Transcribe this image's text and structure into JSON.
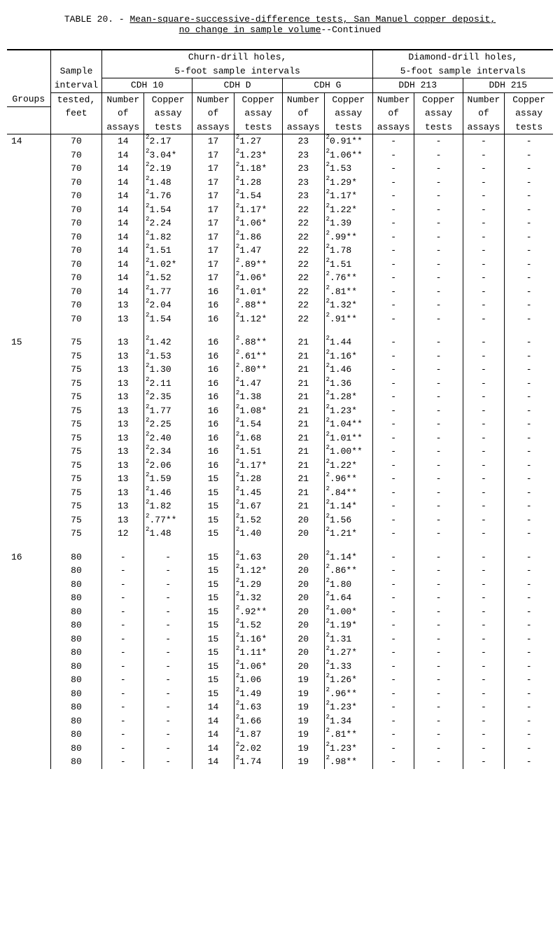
{
  "title": {
    "prefix": "TABLE 20. - ",
    "line1_ul": "Mean-square-successive-difference tests, San Manuel copper deposit,",
    "line2_ul": "no change in sample volume",
    "suffix": "--Continued"
  },
  "headers": {
    "groups": "Groups",
    "sample1": "Sample",
    "sample2": "interval",
    "sample3": "tested,",
    "sample4": "feet",
    "churn": "Churn-drill holes,",
    "churn2": "5-foot sample intervals",
    "diamond": "Diamond-drill holes,",
    "diamond2": "5-foot sample intervals",
    "cdh10": "CDH 10",
    "cdhd": "CDH D",
    "cdhg": "CDH G",
    "ddh213": "DDH 213",
    "ddh215": "DDH 215",
    "ncol1": "Number",
    "ncol2": "of",
    "ncol3": "assays",
    "acol1": "Copper",
    "acol2": "assay",
    "acol3": "tests"
  },
  "groups": [
    {
      "id": "14",
      "rows": [
        {
          "s": "70",
          "n10": "14",
          "a10": "2.17",
          "s10": "2",
          "m10": "",
          "nd": "17",
          "ad": "1.27",
          "sd": "2",
          "md": "",
          "ng": "23",
          "ag": "0.91",
          "sg": "2",
          "mg": "**"
        },
        {
          "s": "70",
          "n10": "14",
          "a10": "3.04",
          "s10": "2",
          "m10": "*",
          "nd": "17",
          "ad": "1.23",
          "sd": "2",
          "md": "*",
          "ng": "23",
          "ag": "1.06",
          "sg": "2",
          "mg": "**"
        },
        {
          "s": "70",
          "n10": "14",
          "a10": "2.19",
          "s10": "2",
          "m10": "",
          "nd": "17",
          "ad": "1.18",
          "sd": "2",
          "md": "*",
          "ng": "23",
          "ag": "1.53",
          "sg": "2",
          "mg": ""
        },
        {
          "s": "70",
          "n10": "14",
          "a10": "1.48",
          "s10": "2",
          "m10": "",
          "nd": "17",
          "ad": "1.28",
          "sd": "2",
          "md": "",
          "ng": "23",
          "ag": "1.29",
          "sg": "2",
          "mg": "*"
        },
        {
          "s": "70",
          "n10": "14",
          "a10": "1.76",
          "s10": "2",
          "m10": "",
          "nd": "17",
          "ad": "1.54",
          "sd": "2",
          "md": "",
          "ng": "23",
          "ag": "1.17",
          "sg": "2",
          "mg": "*"
        },
        {
          "s": "70",
          "n10": "14",
          "a10": "1.54",
          "s10": "2",
          "m10": "",
          "nd": "17",
          "ad": "1.17",
          "sd": "2",
          "md": "*",
          "ng": "22",
          "ag": "1.22",
          "sg": "2",
          "mg": "*"
        },
        {
          "s": "70",
          "n10": "14",
          "a10": "2.24",
          "s10": "2",
          "m10": "",
          "nd": "17",
          "ad": "1.06",
          "sd": "2",
          "md": "*",
          "ng": "22",
          "ag": "1.39",
          "sg": "2",
          "mg": ""
        },
        {
          "s": "70",
          "n10": "14",
          "a10": "1.82",
          "s10": "2",
          "m10": "",
          "nd": "17",
          "ad": "1.86",
          "sd": "2",
          "md": "",
          "ng": "22",
          "ag": ".99",
          "sg": "2",
          "mg": "**"
        },
        {
          "s": "70",
          "n10": "14",
          "a10": "1.51",
          "s10": "2",
          "m10": "",
          "nd": "17",
          "ad": "1.47",
          "sd": "2",
          "md": "",
          "ng": "22",
          "ag": "1.78",
          "sg": "2",
          "mg": ""
        },
        {
          "s": "70",
          "n10": "14",
          "a10": "1.02",
          "s10": "2",
          "m10": "*",
          "nd": "17",
          "ad": ".89",
          "sd": "2",
          "md": "**",
          "ng": "22",
          "ag": "1.51",
          "sg": "2",
          "mg": ""
        },
        {
          "s": "70",
          "n10": "14",
          "a10": "1.52",
          "s10": "2",
          "m10": "",
          "nd": "17",
          "ad": "1.06",
          "sd": "2",
          "md": "*",
          "ng": "22",
          "ag": ".76",
          "sg": "2",
          "mg": "**"
        },
        {
          "s": "70",
          "n10": "14",
          "a10": "1.77",
          "s10": "2",
          "m10": "",
          "nd": "16",
          "ad": "1.01",
          "sd": "2",
          "md": "*",
          "ng": "22",
          "ag": ".81",
          "sg": "2",
          "mg": "**"
        },
        {
          "s": "70",
          "n10": "13",
          "a10": "2.04",
          "s10": "2",
          "m10": "",
          "nd": "16",
          "ad": ".88",
          "sd": "2",
          "md": "**",
          "ng": "22",
          "ag": "1.32",
          "sg": "2",
          "mg": "*"
        },
        {
          "s": "70",
          "n10": "13",
          "a10": "1.54",
          "s10": "2",
          "m10": "",
          "nd": "16",
          "ad": "1.12",
          "sd": "2",
          "md": "*",
          "ng": "22",
          "ag": ".91",
          "sg": "2",
          "mg": "**"
        }
      ]
    },
    {
      "id": "15",
      "rows": [
        {
          "s": "75",
          "n10": "13",
          "a10": "1.42",
          "s10": "2",
          "m10": "",
          "nd": "16",
          "ad": ".88",
          "sd": "2",
          "md": "**",
          "ng": "21",
          "ag": "1.44",
          "sg": "2",
          "mg": ""
        },
        {
          "s": "75",
          "n10": "13",
          "a10": "1.53",
          "s10": "2",
          "m10": "",
          "nd": "16",
          "ad": ".61",
          "sd": "2",
          "md": "**",
          "ng": "21",
          "ag": "1.16",
          "sg": "2",
          "mg": "*"
        },
        {
          "s": "75",
          "n10": "13",
          "a10": "1.30",
          "s10": "2",
          "m10": "",
          "nd": "16",
          "ad": ".80",
          "sd": "2",
          "md": "**",
          "ng": "21",
          "ag": "1.46",
          "sg": "2",
          "mg": ""
        },
        {
          "s": "75",
          "n10": "13",
          "a10": "2.11",
          "s10": "2",
          "m10": "",
          "nd": "16",
          "ad": "1.47",
          "sd": "2",
          "md": "",
          "ng": "21",
          "ag": "1.36",
          "sg": "2",
          "mg": ""
        },
        {
          "s": "75",
          "n10": "13",
          "a10": "2.35",
          "s10": "2",
          "m10": "",
          "nd": "16",
          "ad": "1.38",
          "sd": "2",
          "md": "",
          "ng": "21",
          "ag": "1.28",
          "sg": "2",
          "mg": "*"
        },
        {
          "s": "75",
          "n10": "13",
          "a10": "1.77",
          "s10": "2",
          "m10": "",
          "nd": "16",
          "ad": "1.08",
          "sd": "2",
          "md": "*",
          "ng": "21",
          "ag": "1.23",
          "sg": "2",
          "mg": "*"
        },
        {
          "s": "75",
          "n10": "13",
          "a10": "2.25",
          "s10": "2",
          "m10": "",
          "nd": "16",
          "ad": "1.54",
          "sd": "2",
          "md": "",
          "ng": "21",
          "ag": "1.04",
          "sg": "2",
          "mg": "**"
        },
        {
          "s": "75",
          "n10": "13",
          "a10": "2.40",
          "s10": "2",
          "m10": "",
          "nd": "16",
          "ad": "1.68",
          "sd": "2",
          "md": "",
          "ng": "21",
          "ag": "1.01",
          "sg": "2",
          "mg": "**"
        },
        {
          "s": "75",
          "n10": "13",
          "a10": "2.34",
          "s10": "2",
          "m10": "",
          "nd": "16",
          "ad": "1.51",
          "sd": "2",
          "md": "",
          "ng": "21",
          "ag": "1.00",
          "sg": "2",
          "mg": "**"
        },
        {
          "s": "75",
          "n10": "13",
          "a10": "2.06",
          "s10": "2",
          "m10": "",
          "nd": "16",
          "ad": "1.17",
          "sd": "2",
          "md": "*",
          "ng": "21",
          "ag": "1.22",
          "sg": "2",
          "mg": "*"
        },
        {
          "s": "75",
          "n10": "13",
          "a10": "1.59",
          "s10": "2",
          "m10": "",
          "nd": "15",
          "ad": "1.28",
          "sd": "2",
          "md": "",
          "ng": "21",
          "ag": ".96",
          "sg": "2",
          "mg": "**"
        },
        {
          "s": "75",
          "n10": "13",
          "a10": "1.46",
          "s10": "2",
          "m10": "",
          "nd": "15",
          "ad": "1.45",
          "sd": "2",
          "md": "",
          "ng": "21",
          "ag": ".84",
          "sg": "2",
          "mg": "**"
        },
        {
          "s": "75",
          "n10": "13",
          "a10": "1.82",
          "s10": "2",
          "m10": "",
          "nd": "15",
          "ad": "1.67",
          "sd": "2",
          "md": "",
          "ng": "21",
          "ag": "1.14",
          "sg": "2",
          "mg": "*"
        },
        {
          "s": "75",
          "n10": "13",
          "a10": ".77",
          "s10": "2",
          "m10": "**",
          "nd": "15",
          "ad": "1.52",
          "sd": "2",
          "md": "",
          "ng": "20",
          "ag": "1.56",
          "sg": "2",
          "mg": ""
        },
        {
          "s": "75",
          "n10": "12",
          "a10": "1.48",
          "s10": "2",
          "m10": "",
          "nd": "15",
          "ad": "1.40",
          "sd": "2",
          "md": "",
          "ng": "20",
          "ag": "1.21",
          "sg": "2",
          "mg": "*"
        }
      ]
    },
    {
      "id": "16",
      "rows": [
        {
          "s": "80",
          "n10": "-",
          "a10": "-",
          "s10": "",
          "m10": "",
          "nd": "15",
          "ad": "1.63",
          "sd": "2",
          "md": "",
          "ng": "20",
          "ag": "1.14",
          "sg": "2",
          "mg": "*"
        },
        {
          "s": "80",
          "n10": "-",
          "a10": "-",
          "s10": "",
          "m10": "",
          "nd": "15",
          "ad": "1.12",
          "sd": "2",
          "md": "*",
          "ng": "20",
          "ag": ".86",
          "sg": "2",
          "mg": "**"
        },
        {
          "s": "80",
          "n10": "-",
          "a10": "-",
          "s10": "",
          "m10": "",
          "nd": "15",
          "ad": "1.29",
          "sd": "2",
          "md": "",
          "ng": "20",
          "ag": "1.80",
          "sg": "2",
          "mg": ""
        },
        {
          "s": "80",
          "n10": "-",
          "a10": "-",
          "s10": "",
          "m10": "",
          "nd": "15",
          "ad": "1.32",
          "sd": "2",
          "md": "",
          "ng": "20",
          "ag": "1.64",
          "sg": "2",
          "mg": ""
        },
        {
          "s": "80",
          "n10": "-",
          "a10": "-",
          "s10": "",
          "m10": "",
          "nd": "15",
          "ad": ".92",
          "sd": "2",
          "md": "**",
          "ng": "20",
          "ag": "1.00",
          "sg": "2",
          "mg": "*"
        },
        {
          "s": "80",
          "n10": "-",
          "a10": "-",
          "s10": "",
          "m10": "",
          "nd": "15",
          "ad": "1.52",
          "sd": "2",
          "md": "",
          "ng": "20",
          "ag": "1.19",
          "sg": "2",
          "mg": "*"
        },
        {
          "s": "80",
          "n10": "-",
          "a10": "-",
          "s10": "",
          "m10": "",
          "nd": "15",
          "ad": "1.16",
          "sd": "2",
          "md": "*",
          "ng": "20",
          "ag": "1.31",
          "sg": "2",
          "mg": ""
        },
        {
          "s": "80",
          "n10": "-",
          "a10": "-",
          "s10": "",
          "m10": "",
          "nd": "15",
          "ad": "1.11",
          "sd": "2",
          "md": "*",
          "ng": "20",
          "ag": "1.27",
          "sg": "2",
          "mg": "*"
        },
        {
          "s": "80",
          "n10": "-",
          "a10": "-",
          "s10": "",
          "m10": "",
          "nd": "15",
          "ad": "1.06",
          "sd": "2",
          "md": "*",
          "ng": "20",
          "ag": "1.33",
          "sg": "2",
          "mg": ""
        },
        {
          "s": "80",
          "n10": "-",
          "a10": "-",
          "s10": "",
          "m10": "",
          "nd": "15",
          "ad": "1.06",
          "sd": "2",
          "md": "",
          "ng": "19",
          "ag": "1.26",
          "sg": "2",
          "mg": "*"
        },
        {
          "s": "80",
          "n10": "-",
          "a10": "-",
          "s10": "",
          "m10": "",
          "nd": "15",
          "ad": "1.49",
          "sd": "2",
          "md": "",
          "ng": "19",
          "ag": ".96",
          "sg": "2",
          "mg": "**"
        },
        {
          "s": "80",
          "n10": "-",
          "a10": "-",
          "s10": "",
          "m10": "",
          "nd": "14",
          "ad": "1.63",
          "sd": "2",
          "md": "",
          "ng": "19",
          "ag": "1.23",
          "sg": "2",
          "mg": "*"
        },
        {
          "s": "80",
          "n10": "-",
          "a10": "-",
          "s10": "",
          "m10": "",
          "nd": "14",
          "ad": "1.66",
          "sd": "2",
          "md": "",
          "ng": "19",
          "ag": "1.34",
          "sg": "2",
          "mg": ""
        },
        {
          "s": "80",
          "n10": "-",
          "a10": "-",
          "s10": "",
          "m10": "",
          "nd": "14",
          "ad": "1.87",
          "sd": "2",
          "md": "",
          "ng": "19",
          "ag": ".81",
          "sg": "2",
          "mg": "**"
        },
        {
          "s": "80",
          "n10": "-",
          "a10": "-",
          "s10": "",
          "m10": "",
          "nd": "14",
          "ad": "2.02",
          "sd": "2",
          "md": "",
          "ng": "19",
          "ag": "1.23",
          "sg": "2",
          "mg": "*"
        },
        {
          "s": "80",
          "n10": "-",
          "a10": "-",
          "s10": "",
          "m10": "",
          "nd": "14",
          "ad": "1.74",
          "sd": "2",
          "md": "",
          "ng": "19",
          "ag": ".98",
          "sg": "2",
          "mg": "**"
        }
      ]
    }
  ]
}
